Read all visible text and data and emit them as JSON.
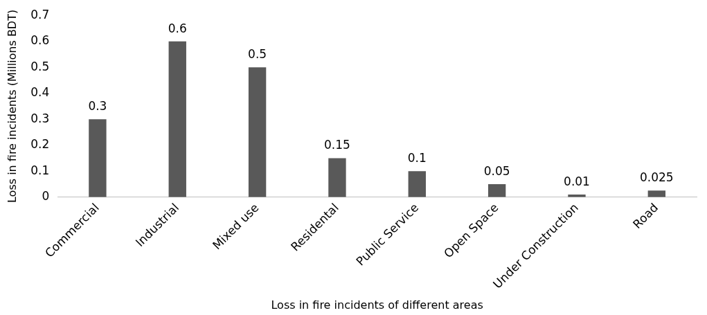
{
  "chart_data": {
    "type": "bar",
    "xlabel": "Loss in fire incidents of different areas",
    "ylabel": "Loss in fire incidents (Millions BDT)",
    "categories": [
      "Commercial",
      "Industrial",
      "Mixed use",
      "Residental",
      "Public Service",
      "Open Space",
      "Under Construction",
      "Road"
    ],
    "values": [
      0.3,
      0.6,
      0.5,
      0.15,
      0.1,
      0.05,
      0.01,
      0.025
    ],
    "color": "#595959",
    "ylim": [
      0,
      0.7
    ],
    "yticks": [
      0,
      0.1,
      0.2,
      0.3,
      0.4,
      0.5,
      0.6,
      0.7
    ],
    "grid": false,
    "legend": false,
    "data_labels": true
  }
}
